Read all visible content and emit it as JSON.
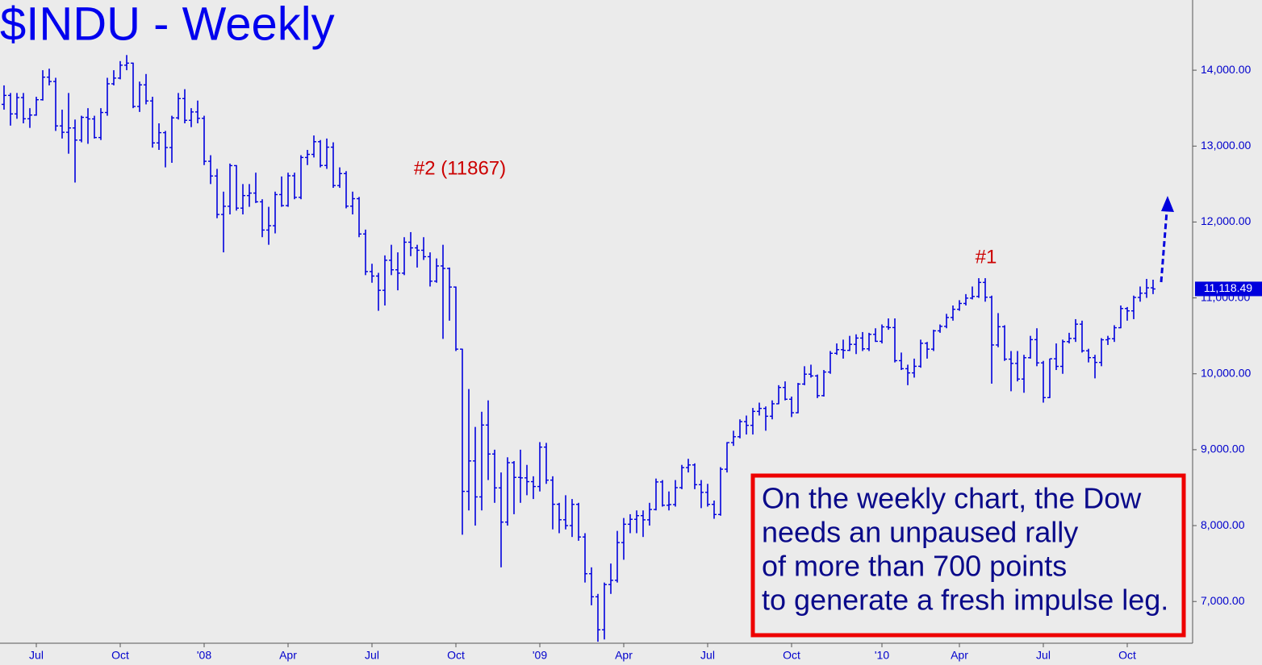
{
  "chart_data": {
    "type": "ohlc",
    "title": "$INDU - Weekly",
    "categories": [
      null,
      null,
      null,
      null,
      null,
      "Jul",
      null,
      null,
      null,
      null,
      null,
      null,
      null,
      null,
      null,
      null,
      null,
      null,
      "Oct",
      null,
      null,
      null,
      null,
      null,
      null,
      null,
      null,
      null,
      null,
      null,
      null,
      "'08",
      null,
      null,
      null,
      null,
      null,
      null,
      null,
      null,
      null,
      null,
      null,
      null,
      "Apr",
      null,
      null,
      null,
      null,
      null,
      null,
      null,
      null,
      null,
      null,
      null,
      null,
      "Jul",
      null,
      null,
      null,
      null,
      null,
      null,
      null,
      null,
      null,
      null,
      null,
      null,
      "Oct",
      null,
      null,
      null,
      null,
      null,
      null,
      null,
      null,
      null,
      null,
      null,
      null,
      "'09",
      null,
      null,
      null,
      null,
      null,
      null,
      null,
      null,
      null,
      null,
      null,
      null,
      "Apr",
      null,
      null,
      null,
      null,
      null,
      null,
      null,
      null,
      null,
      null,
      null,
      null,
      "Jul",
      null,
      null,
      null,
      null,
      null,
      null,
      null,
      null,
      null,
      null,
      null,
      null,
      "Oct",
      null,
      null,
      null,
      null,
      null,
      null,
      null,
      null,
      null,
      null,
      null,
      null,
      null,
      "'10",
      null,
      null,
      null,
      null,
      null,
      null,
      null,
      null,
      null,
      null,
      null,
      "Apr",
      null,
      null,
      null,
      null,
      null,
      null,
      null,
      null,
      null,
      null,
      null,
      null,
      "Jul",
      null,
      null,
      null,
      null,
      null,
      null,
      null,
      null,
      null,
      null,
      null,
      null,
      "Oct",
      null,
      null,
      null,
      null
    ],
    "open": [
      13550,
      13668,
      13424,
      13639,
      13360,
      13409,
      13611,
      13908,
      13851,
      13266,
      13182,
      13239,
      13079,
      13379,
      13358,
      13113,
      13443,
      13821,
      13896,
      14066,
      14093,
      13522,
      13807,
      13595,
      13042,
      13177,
      12981,
      13372,
      13626,
      13340,
      13450,
      13366,
      12800,
      12606,
      12099,
      12207,
      12743,
      12183,
      12348,
      12381,
      12266,
      11894,
      11951,
      12361,
      12216,
      12609,
      12325,
      12850,
      12891,
      13058,
      12745,
      12986,
      12480,
      12638,
      12209,
      12307,
      11842,
      11347,
      11288,
      11100,
      11496,
      11370,
      11326,
      11734,
      11659,
      11628,
      11543,
      11220,
      11421,
      11388,
      11143,
      10325,
      8451,
      8852,
      8378,
      9325,
      8943,
      8497,
      8046,
      8829,
      8635,
      8629,
      8579,
      8515,
      9034,
      8599,
      8281,
      8077,
      8000,
      8280,
      7850,
      7366,
      7062,
      6627,
      7223,
      7279,
      7776,
      8018,
      8083,
      8131,
      8076,
      8212,
      8575,
      8268,
      8277,
      8500,
      8764,
      8799,
      8539,
      8438,
      8280,
      8146,
      8743,
      9093,
      9171,
      9370,
      9321,
      9505,
      9544,
      9441,
      9605,
      9820,
      9665,
      9487,
      9865,
      9995,
      9972,
      9712,
      10023,
      10270,
      10318,
      10309,
      10388,
      10471,
      10329,
      10520,
      10428,
      10618,
      10609,
      10173,
      10067,
      10012,
      10099,
      10402,
      10325,
      10566,
      10625,
      10742,
      10850,
      10927,
      10997,
      11019,
      11204,
      11009,
      10380,
      10620,
      10193,
      10137,
      9931,
      10212,
      10450,
      10144,
      9686,
      10198,
      10098,
      10424,
      10466,
      10654,
      10303,
      10213,
      10150,
      10448,
      10462,
      10607,
      10860,
      10829,
      11006,
      11062,
      11133
    ],
    "high": [
      13800,
      13700,
      13700,
      13700,
      13500,
      13650,
      14000,
      14020,
      13900,
      13480,
      13700,
      13350,
      13400,
      13500,
      13400,
      13500,
      13900,
      14000,
      14120,
      14200,
      14100,
      13850,
      13950,
      13650,
      13300,
      13200,
      13400,
      13700,
      13750,
      13500,
      13600,
      13400,
      12880,
      12700,
      12400,
      12770,
      12750,
      12500,
      12500,
      12650,
      12300,
      12200,
      12400,
      12600,
      12650,
      12650,
      12880,
      12950,
      13140,
      13080,
      13100,
      13050,
      12720,
      12670,
      12400,
      12330,
      11900,
      11450,
      11330,
      11560,
      11700,
      11600,
      11800,
      11867,
      11700,
      11800,
      11600,
      11520,
      11700,
      11400,
      11150,
      10330,
      9800,
      9300,
      9500,
      9650,
      9000,
      8700,
      8900,
      8850,
      9000,
      8800,
      8650,
      9100,
      9090,
      8650,
      8300,
      8400,
      8350,
      8300,
      7900,
      7450,
      7100,
      7250,
      7500,
      7930,
      8100,
      8150,
      8200,
      8200,
      8300,
      8620,
      8600,
      8450,
      8600,
      8800,
      8880,
      8820,
      8600,
      8550,
      8330,
      8770,
      9100,
      9250,
      9400,
      9450,
      9550,
      9620,
      9570,
      9650,
      9850,
      9900,
      9700,
      9880,
      10100,
      10120,
      9990,
      10050,
      10300,
      10400,
      10450,
      10500,
      10520,
      10550,
      10540,
      10600,
      10650,
      10730,
      10730,
      10280,
      10120,
      10200,
      10450,
      10420,
      10580,
      10650,
      10790,
      10900,
      10970,
      11050,
      11150,
      11260,
      11260,
      11030,
      10800,
      10640,
      10300,
      10300,
      10250,
      10500,
      10600,
      10170,
      10200,
      10400,
      10450,
      10540,
      10720,
      10700,
      10330,
      10250,
      10470,
      10500,
      10640,
      10900,
      10880,
      11030,
      11150,
      11250,
      11240
    ],
    "low": [
      13480,
      13270,
      13360,
      13300,
      13240,
      13400,
      13600,
      13800,
      13200,
      13100,
      12900,
      12520,
      13050,
      13030,
      13100,
      13080,
      13400,
      13800,
      13880,
      14000,
      13500,
      13450,
      13550,
      12980,
      12950,
      12720,
      12780,
      13350,
      13300,
      13250,
      13300,
      12750,
      12500,
      12050,
      11600,
      12100,
      12150,
      12100,
      12200,
      12250,
      11800,
      11700,
      11850,
      12200,
      12200,
      12300,
      12300,
      12750,
      12850,
      12720,
      12700,
      12450,
      12450,
      12180,
      12100,
      11800,
      11300,
      11200,
      10830,
      10900,
      11300,
      11100,
      11300,
      11550,
      11400,
      11500,
      11150,
      11200,
      10460,
      10700,
      10300,
      7880,
      8200,
      8000,
      8200,
      8600,
      8300,
      7450,
      8000,
      8150,
      8300,
      8400,
      8350,
      8450,
      8550,
      7950,
      7900,
      7950,
      7850,
      7800,
      7250,
      6950,
      6470,
      6500,
      7100,
      7250,
      7550,
      7900,
      7900,
      7850,
      8000,
      8200,
      8250,
      8200,
      8250,
      8480,
      8700,
      8480,
      8230,
      8250,
      8090,
      8130,
      8700,
      9050,
      9150,
      9200,
      9200,
      9450,
      9250,
      9400,
      9600,
      9650,
      9430,
      9480,
      9850,
      9950,
      9680,
      9700,
      10000,
      10250,
      10200,
      10300,
      10260,
      10300,
      10300,
      10420,
      10400,
      10580,
      10150,
      10050,
      9850,
      9950,
      10080,
      10200,
      10300,
      10540,
      10600,
      10700,
      10830,
      10900,
      10980,
      11000,
      10950,
      9870,
      10350,
      10170,
      9770,
      9900,
      9750,
      10200,
      10100,
      9620,
      9680,
      10050,
      10000,
      10400,
      10420,
      10280,
      10150,
      9940,
      10100,
      10380,
      10420,
      10600,
      10700,
      10720,
      10950,
      11000,
      11050
    ],
    "close": [
      13668,
      13424,
      13639,
      13360,
      13409,
      13611,
      13908,
      13851,
      13266,
      13182,
      13239,
      13079,
      13379,
      13358,
      13113,
      13443,
      13821,
      13896,
      14066,
      14093,
      13522,
      13807,
      13595,
      13042,
      13177,
      12981,
      13372,
      13626,
      13340,
      13450,
      13366,
      12800,
      12606,
      12099,
      12207,
      12743,
      12183,
      12348,
      12381,
      12266,
      11894,
      11951,
      12361,
      12216,
      12609,
      12325,
      12850,
      12891,
      13058,
      12745,
      12986,
      12480,
      12638,
      12209,
      12307,
      11842,
      11347,
      11288,
      11100,
      11496,
      11370,
      11326,
      11734,
      11659,
      11628,
      11543,
      11220,
      11421,
      11388,
      11143,
      10325,
      8451,
      8852,
      8378,
      9325,
      8943,
      8497,
      8046,
      8829,
      8635,
      8629,
      8579,
      8515,
      9034,
      8599,
      8281,
      8077,
      8000,
      8280,
      7850,
      7366,
      7062,
      6627,
      7223,
      7279,
      7776,
      8018,
      8083,
      8131,
      8076,
      8212,
      8575,
      8268,
      8277,
      8500,
      8764,
      8799,
      8539,
      8438,
      8280,
      8146,
      8743,
      9093,
      9171,
      9370,
      9321,
      9505,
      9544,
      9441,
      9605,
      9820,
      9665,
      9487,
      9865,
      9995,
      9972,
      9712,
      10023,
      10270,
      10318,
      10309,
      10388,
      10471,
      10329,
      10520,
      10428,
      10618,
      10609,
      10173,
      10067,
      10012,
      10099,
      10402,
      10325,
      10566,
      10625,
      10742,
      10850,
      10927,
      10997,
      11019,
      11204,
      11009,
      10380,
      10620,
      10193,
      10137,
      9931,
      10212,
      10450,
      10144,
      9686,
      10198,
      10098,
      10424,
      10466,
      10654,
      10303,
      10213,
      10150,
      10448,
      10462,
      10607,
      10860,
      10829,
      11006,
      11062,
      11133,
      11118
    ],
    "color": "#0000dd",
    "ylim": [
      6450,
      14925
    ],
    "yticks": [
      {
        "value": 7000,
        "label": "7,000.00"
      },
      {
        "value": 8000,
        "label": "8,000.00"
      },
      {
        "value": 9000,
        "label": "9,000.00"
      },
      {
        "value": 10000,
        "label": "10,000.00"
      },
      {
        "value": 11000,
        "label": "11,000.00"
      },
      {
        "value": 12000,
        "label": "12,000.00"
      },
      {
        "value": 13000,
        "label": "13,000.00"
      },
      {
        "value": 14000,
        "label": "14,000.00"
      }
    ],
    "last_price": {
      "value": 11118.49,
      "label": "11,118.49"
    },
    "annotations": [
      "#2 (11867)",
      "#1"
    ],
    "note": [
      "On the weekly chart, the Dow",
      "needs an unpaused rally",
      "of more than 700 points",
      "to generate a fresh impulse leg."
    ],
    "grid": false
  }
}
